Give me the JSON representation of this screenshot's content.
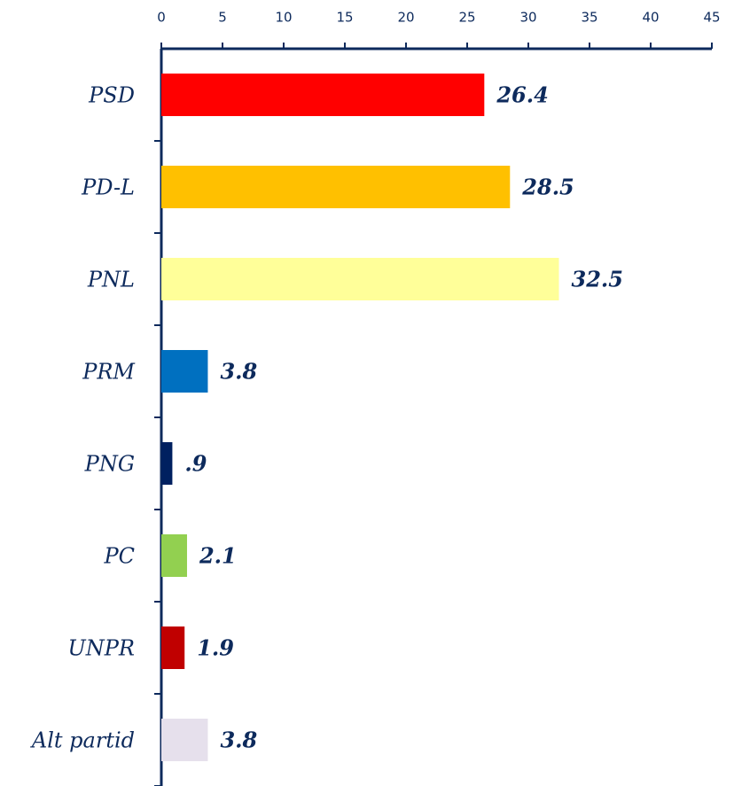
{
  "chart_data": {
    "type": "hbar",
    "categories": [
      "PSD",
      "PD-L",
      "PNL",
      "PRM",
      "PNG",
      "PC",
      "UNPR",
      "Alt partid"
    ],
    "values": [
      26.4,
      28.5,
      32.5,
      3.8,
      0.9,
      2.1,
      1.9,
      3.8
    ],
    "value_labels": [
      "26.4",
      "28.5",
      "32.5",
      "3.8",
      ".9",
      "2.1",
      "1.9",
      "3.8"
    ],
    "colors": [
      "#ff0000",
      "#ffc000",
      "#ffff99",
      "#0070c0",
      "#002060",
      "#92d050",
      "#c00000",
      "#e6e0ec"
    ],
    "xlim": [
      0,
      45
    ],
    "xticks": [
      0,
      5,
      10,
      15,
      20,
      25,
      30,
      35,
      40,
      45
    ]
  }
}
